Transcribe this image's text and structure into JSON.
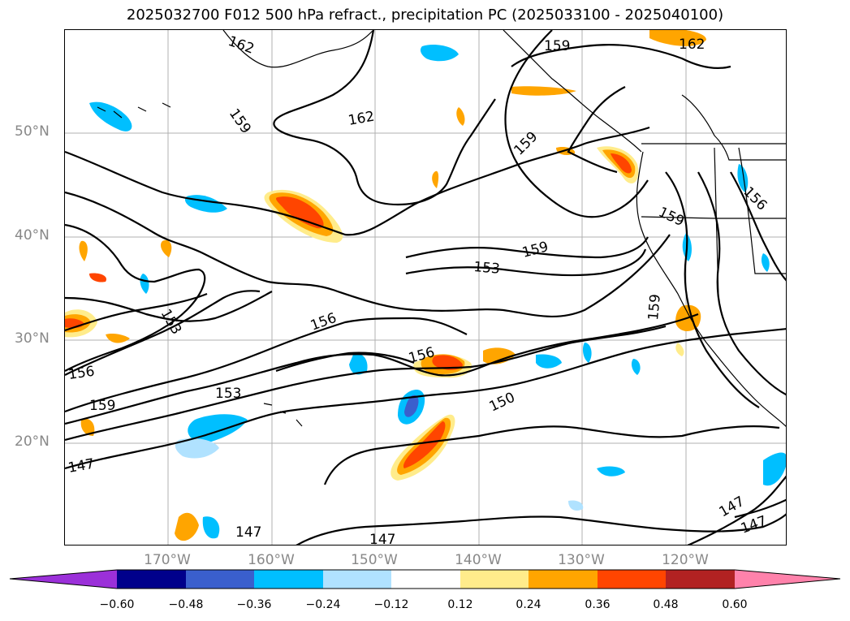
{
  "title": "2025032700 F012 500 hPa refract., precipitation PC (2025033100 - 2025040100)",
  "lat_labels": [
    "50°N",
    "40°N",
    "30°N",
    "20°N"
  ],
  "lon_labels": [
    "170°W",
    "160°W",
    "150°W",
    "140°W",
    "130°W",
    "120°W"
  ],
  "contour_labels": [
    "162",
    "159",
    "162",
    "159",
    "159",
    "159",
    "153",
    "153",
    "156",
    "156",
    "156",
    "153",
    "159",
    "150",
    "147",
    "147",
    "147",
    "147",
    "147",
    "162",
    "159",
    "156",
    "159"
  ],
  "colorbar": {
    "colors": [
      "#9b30d9",
      "#00008b",
      "#3a5fcd",
      "#00bfff",
      "#b0e2ff",
      "#ffffff",
      "#ffec8b",
      "#ffa500",
      "#ff4500",
      "#b22222",
      "#ff82ab"
    ],
    "tick_labels": [
      "−0.60",
      "−0.48",
      "−0.36",
      "−0.24",
      "−0.12",
      "0.12",
      "0.24",
      "0.36",
      "0.48",
      "0.60"
    ]
  }
}
